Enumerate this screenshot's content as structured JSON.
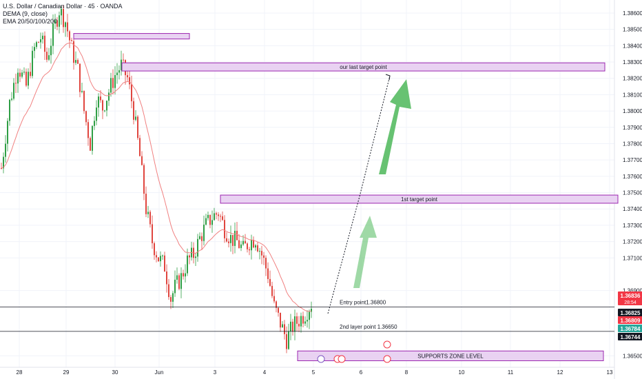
{
  "header": {
    "symbol_line": "U.S. Dollar / Canadian Dollar · 45 · OANDA",
    "indicator_1": "DEMA (9, close)",
    "indicator_2": "EMA 20/50/100/200"
  },
  "colors": {
    "up": "#26a69a",
    "down": "#ef5350",
    "bull_candle": "#2e9e44",
    "bear_candle": "#e0453e",
    "ema": "#f08080",
    "zone_fill": "#e9d2f2",
    "zone_border": "#9c27b0",
    "arrow": "#5fbf6a",
    "grid": "#f0f3fa"
  },
  "chart_data": {
    "type": "candlestick",
    "symbol": "USDCAD",
    "timeframe": "45",
    "ylim": [
      1.3643,
      1.3868
    ],
    "y_ticks": [
      "1.38600",
      "1.38500",
      "1.38400",
      "1.38300",
      "1.38200",
      "1.38100",
      "1.38000",
      "1.37900",
      "1.37800",
      "1.37700",
      "1.37600",
      "1.37500",
      "1.37400",
      "1.37300",
      "1.37200",
      "1.37100",
      "1.36900",
      "1.36500"
    ],
    "x_ticks": [
      "28",
      "29",
      "30",
      "Jun",
      "3",
      "4",
      "5",
      "6",
      "8",
      "10",
      "11",
      "12",
      "13"
    ],
    "price_path": [
      [
        0,
        1.3765
      ],
      [
        4,
        1.3805
      ],
      [
        8,
        1.3828
      ],
      [
        12,
        1.3815
      ],
      [
        16,
        1.3838
      ],
      [
        19,
        1.3845
      ],
      [
        22,
        1.3832
      ],
      [
        25,
        1.3848
      ],
      [
        28,
        1.3862
      ],
      [
        31,
        1.3855
      ],
      [
        34,
        1.3838
      ],
      [
        37,
        1.3825
      ],
      [
        40,
        1.38
      ],
      [
        43,
        1.378
      ],
      [
        46,
        1.3808
      ],
      [
        49,
        1.3802
      ],
      [
        52,
        1.3812
      ],
      [
        55,
        1.3822
      ],
      [
        58,
        1.3828
      ],
      [
        61,
        1.382
      ],
      [
        64,
        1.38
      ],
      [
        67,
        1.3772
      ],
      [
        70,
        1.374
      ],
      [
        73,
        1.372
      ],
      [
        76,
        1.371
      ],
      [
        79,
        1.3705
      ],
      [
        82,
        1.3685
      ],
      [
        84,
        1.3692
      ],
      [
        87,
        1.3698
      ],
      [
        90,
        1.3708
      ],
      [
        93,
        1.3712
      ],
      [
        96,
        1.3722
      ],
      [
        99,
        1.373
      ],
      [
        102,
        1.3735
      ],
      [
        105,
        1.3738
      ],
      [
        108,
        1.3728
      ],
      [
        111,
        1.3722
      ],
      [
        114,
        1.372
      ],
      [
        117,
        1.3715
      ],
      [
        120,
        1.372
      ],
      [
        123,
        1.3722
      ],
      [
        126,
        1.3712
      ],
      [
        129,
        1.37
      ],
      [
        132,
        1.368
      ],
      [
        135,
        1.367
      ],
      [
        138,
        1.366
      ],
      [
        141,
        1.3668
      ],
      [
        144,
        1.3672
      ],
      [
        147,
        1.3676
      ],
      [
        150,
        1.3682
      ]
    ],
    "horizontal_lines": [
      {
        "price": 1.368,
        "label": "Entry point1.36800"
      },
      {
        "price": 1.3665,
        "label": "2nd layer point 1.36650"
      }
    ],
    "zones": [
      {
        "label": "our last target point",
        "top": 1.38295,
        "bottom": 1.38245
      },
      {
        "label": "1st target point",
        "top": 1.37485,
        "bottom": 1.37435
      },
      {
        "label": "SUPPORTS ZONE LEVEL",
        "top": 1.3653,
        "bottom": 1.3647
      },
      {
        "label": "",
        "top": 1.38475,
        "bottom": 1.3845
      }
    ],
    "price_labels": [
      {
        "value": "1.36836",
        "sub": "28:54",
        "color": "#f23645"
      },
      {
        "value": "1.36825",
        "sub": "",
        "color": "#131722"
      },
      {
        "value": "1.36809",
        "sub": "",
        "color": "#f23645"
      },
      {
        "value": "1.36784",
        "sub": "",
        "color": "#26a69a"
      },
      {
        "value": "1.36744",
        "sub": "",
        "color": "#131722"
      }
    ]
  }
}
